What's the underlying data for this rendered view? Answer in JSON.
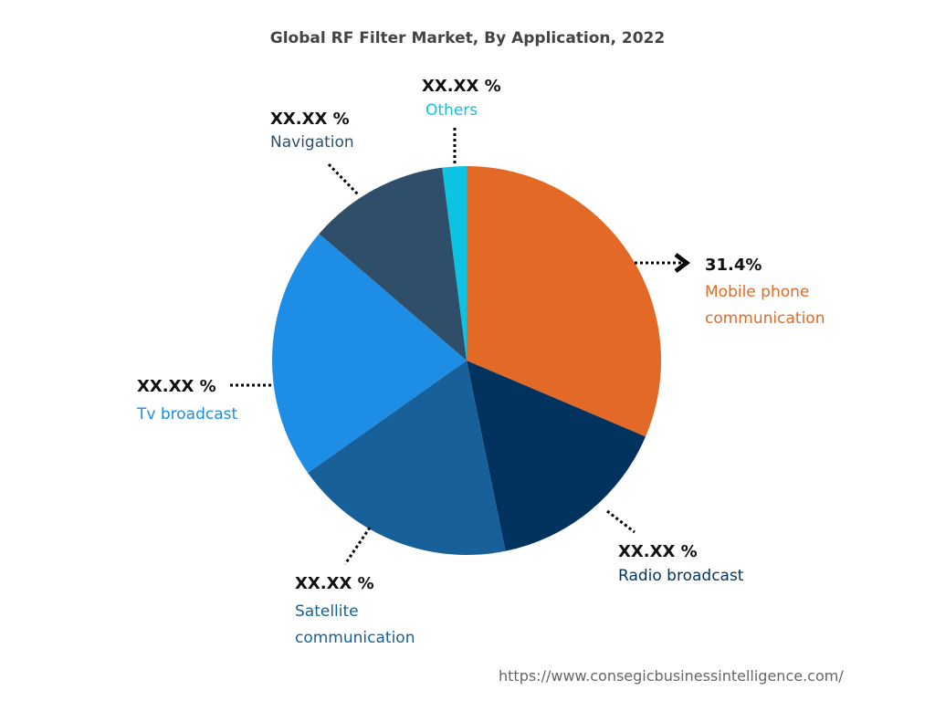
{
  "chart_data": {
    "type": "pie",
    "title": "Global RF Filter Market, By Application, 2022",
    "categories": [
      "Mobile phone communication",
      "Radio broadcast",
      "Satellite communication",
      "Tv broadcast",
      "Navigation",
      "Others"
    ],
    "values": [
      31.4,
      15.4,
      18.4,
      21.1,
      11.7,
      2.0
    ],
    "value_labels": [
      "31.4%",
      "XX.XX %",
      "XX.XX %",
      "XX.XX %",
      "XX.XX %",
      "XX.XX %"
    ],
    "colors": [
      "#e36a26",
      "#02335f",
      "#17609a",
      "#1e8de6",
      "#2f4e6a",
      "#0dc3e3"
    ],
    "source": "https://www.consegicbusinessintelligence.com/"
  }
}
